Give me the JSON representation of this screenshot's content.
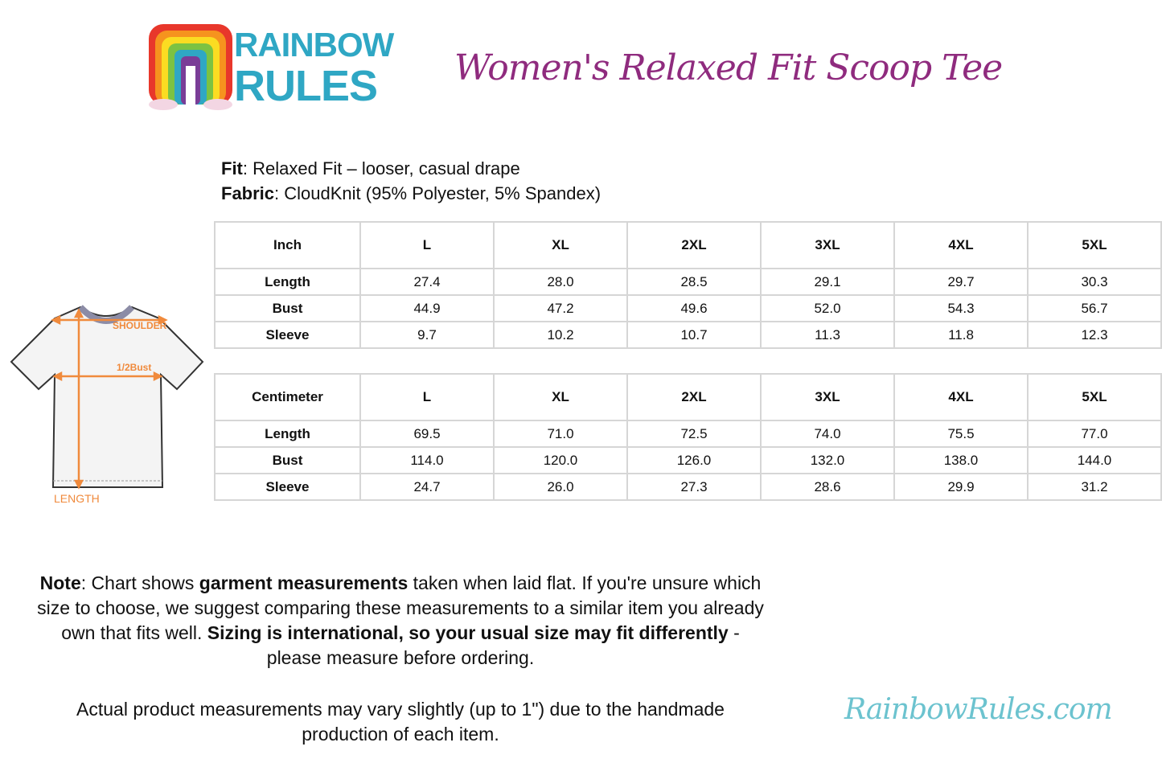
{
  "brand": {
    "logo_line1": "RAINBOW",
    "logo_line2": "RULES",
    "website": "RainbowRules.com"
  },
  "title": "Women's Relaxed Fit Scoop Tee",
  "specs": {
    "fit_label": "Fit",
    "fit_value": ": Relaxed Fit – looser, casual drape",
    "fabric_label": "Fabric",
    "fabric_value": ": CloudKnit (95% Polyester, 5% Spandex)"
  },
  "diagram": {
    "shoulder_label": "SHOULDER",
    "bust_label": "1/2Bust",
    "length_label": "LENGTH",
    "accent_color": "#f08a3c"
  },
  "tables": [
    {
      "unit": "Inch",
      "sizes": [
        "L",
        "XL",
        "2XL",
        "3XL",
        "4XL",
        "5XL"
      ],
      "rows": [
        {
          "label": "Length",
          "values": [
            "27.4",
            "28.0",
            "28.5",
            "29.1",
            "29.7",
            "30.3"
          ]
        },
        {
          "label": "Bust",
          "values": [
            "44.9",
            "47.2",
            "49.6",
            "52.0",
            "54.3",
            "56.7"
          ]
        },
        {
          "label": "Sleeve",
          "values": [
            "9.7",
            "10.2",
            "10.7",
            "11.3",
            "11.8",
            "12.3"
          ]
        }
      ]
    },
    {
      "unit": "Centimeter",
      "sizes": [
        "L",
        "XL",
        "2XL",
        "3XL",
        "4XL",
        "5XL"
      ],
      "rows": [
        {
          "label": "Length",
          "values": [
            "69.5",
            "71.0",
            "72.5",
            "74.0",
            "75.5",
            "77.0"
          ]
        },
        {
          "label": "Bust",
          "values": [
            "114.0",
            "120.0",
            "126.0",
            "132.0",
            "138.0",
            "144.0"
          ]
        },
        {
          "label": "Sleeve",
          "values": [
            "24.7",
            "26.0",
            "27.3",
            "28.6",
            "29.9",
            "31.2"
          ]
        }
      ]
    }
  ],
  "note": {
    "label": "Note",
    "t1": ": Chart shows ",
    "b1": "garment measurements",
    "t2": " taken when laid flat. If you're unsure which size to choose, we suggest comparing these measurements to a similar item you already own that fits well. ",
    "b2": "Sizing is international, so your usual size may fit differently",
    "t3": " - please measure before ordering."
  },
  "footer": "Actual product measurements may vary slightly (up to 1\") due to the handmade production of each item.",
  "colors": {
    "title": "#8f2b7e",
    "logo_text": "#2fa7c4",
    "website": "#6cc3cf",
    "table_border": "#d6d6d6"
  }
}
